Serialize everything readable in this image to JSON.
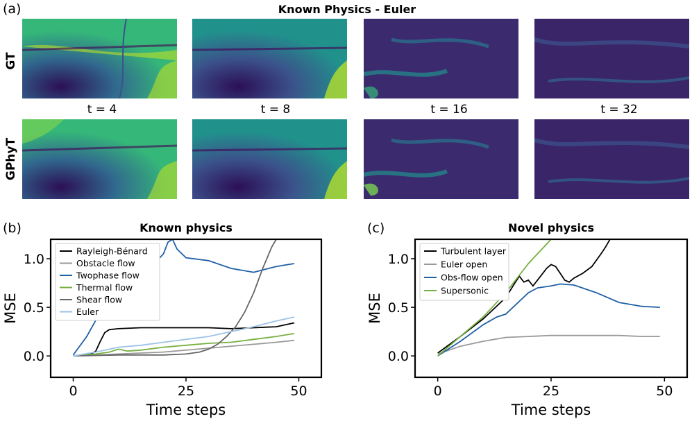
{
  "panel_a": {
    "label": "(a)",
    "title": "Known Physics - Euler",
    "rows": [
      "GT",
      "GPhyT"
    ],
    "times": [
      "t = 4",
      "t = 8",
      "t = 16",
      "t = 32"
    ]
  },
  "panel_b": {
    "label": "(b)"
  },
  "panel_c": {
    "label": "(c)"
  },
  "colors": {
    "black": "#000000",
    "grey": "#999999",
    "blue": "#1f5fa5",
    "green": "#76b041",
    "darkgrey": "#666666",
    "lightblue": "#9cc3e6"
  },
  "chart_data": [
    {
      "type": "line",
      "title": "Known physics",
      "xlabel": "Time steps",
      "ylabel": "MSE",
      "xlim": [
        -5,
        55
      ],
      "ylim": [
        -0.22,
        1.2
      ],
      "xticks": [
        0,
        25,
        50
      ],
      "yticks": [
        0.0,
        0.5,
        1.0
      ],
      "ytick_labels": [
        "0.0",
        "0.5",
        "1.0"
      ],
      "legend": "top-left",
      "series": [
        {
          "name": "Rayleigh-Bénard",
          "color": "#000000",
          "x": [
            0,
            4,
            5,
            6,
            7,
            8,
            10,
            15,
            20,
            25,
            30,
            35,
            40,
            45,
            48,
            49
          ],
          "y": [
            0.0,
            0.02,
            0.05,
            0.15,
            0.24,
            0.27,
            0.28,
            0.29,
            0.29,
            0.29,
            0.29,
            0.28,
            0.29,
            0.3,
            0.33,
            0.34
          ]
        },
        {
          "name": "Obstacle flow",
          "color": "#999999",
          "x": [
            0,
            10,
            20,
            30,
            40,
            45,
            49
          ],
          "y": [
            0.0,
            0.02,
            0.04,
            0.08,
            0.12,
            0.14,
            0.16
          ]
        },
        {
          "name": "Twophase flow",
          "color": "#1f5fa5",
          "x": [
            0,
            3,
            6,
            10,
            15,
            18,
            20,
            21,
            22,
            23,
            25,
            30,
            35,
            40,
            45,
            49
          ],
          "y": [
            0.01,
            0.2,
            0.45,
            0.65,
            0.85,
            0.95,
            1.05,
            1.17,
            1.2,
            1.1,
            1.01,
            0.98,
            0.9,
            0.86,
            0.92,
            0.95
          ]
        },
        {
          "name": "Thermal flow",
          "color": "#76b041",
          "x": [
            0,
            5,
            8,
            10,
            12,
            15,
            20,
            25,
            30,
            35,
            40,
            45,
            49
          ],
          "y": [
            0.0,
            0.02,
            0.04,
            0.07,
            0.05,
            0.06,
            0.09,
            0.11,
            0.13,
            0.14,
            0.17,
            0.2,
            0.23
          ]
        },
        {
          "name": "Shear flow",
          "color": "#666666",
          "x": [
            0,
            10,
            20,
            25,
            28,
            30,
            32,
            34,
            36,
            38,
            40,
            42,
            44,
            45
          ],
          "y": [
            0.0,
            0.01,
            0.01,
            0.02,
            0.04,
            0.07,
            0.12,
            0.2,
            0.3,
            0.45,
            0.65,
            0.9,
            1.12,
            1.2
          ]
        },
        {
          "name": "Euler",
          "color": "#9cc3e6",
          "x": [
            0,
            5,
            10,
            15,
            20,
            25,
            30,
            35,
            40,
            45,
            49
          ],
          "y": [
            0.0,
            0.04,
            0.09,
            0.11,
            0.14,
            0.17,
            0.2,
            0.25,
            0.3,
            0.36,
            0.4
          ]
        }
      ]
    },
    {
      "type": "line",
      "title": "Novel physics",
      "xlabel": "Time steps",
      "ylabel": "MSE",
      "xlim": [
        -5,
        55
      ],
      "ylim": [
        -0.22,
        1.2
      ],
      "xticks": [
        0,
        25,
        50
      ],
      "yticks": [
        0.0,
        0.5,
        1.0
      ],
      "ytick_labels": [
        "0.0",
        "0.5",
        "1.0"
      ],
      "legend": "top-left",
      "series": [
        {
          "name": "Turbulent layer",
          "color": "#000000",
          "x": [
            0,
            5,
            10,
            15,
            17,
            18,
            19,
            20,
            21,
            22,
            24,
            25,
            26,
            27,
            28,
            29,
            30,
            32,
            34,
            36,
            37,
            38
          ],
          "y": [
            0.03,
            0.2,
            0.38,
            0.6,
            0.75,
            0.82,
            0.76,
            0.78,
            0.72,
            0.78,
            0.9,
            0.94,
            0.92,
            0.85,
            0.78,
            0.76,
            0.8,
            0.85,
            0.92,
            1.05,
            1.12,
            1.2
          ]
        },
        {
          "name": "Euler open",
          "color": "#999999",
          "x": [
            0,
            5,
            10,
            15,
            20,
            25,
            30,
            35,
            40,
            45,
            49
          ],
          "y": [
            0.02,
            0.1,
            0.15,
            0.19,
            0.2,
            0.21,
            0.21,
            0.21,
            0.21,
            0.2,
            0.2
          ]
        },
        {
          "name": "Obs-flow open",
          "color": "#1f5fa5",
          "x": [
            0,
            5,
            10,
            13,
            15,
            20,
            22,
            25,
            27,
            30,
            35,
            40,
            45,
            49
          ],
          "y": [
            0.0,
            0.15,
            0.32,
            0.4,
            0.43,
            0.65,
            0.7,
            0.72,
            0.74,
            0.73,
            0.65,
            0.55,
            0.51,
            0.5
          ]
        },
        {
          "name": "Supersonic",
          "color": "#76b041",
          "x": [
            0,
            5,
            10,
            15,
            20,
            25
          ],
          "y": [
            0.0,
            0.2,
            0.4,
            0.65,
            0.95,
            1.2
          ]
        }
      ]
    }
  ]
}
